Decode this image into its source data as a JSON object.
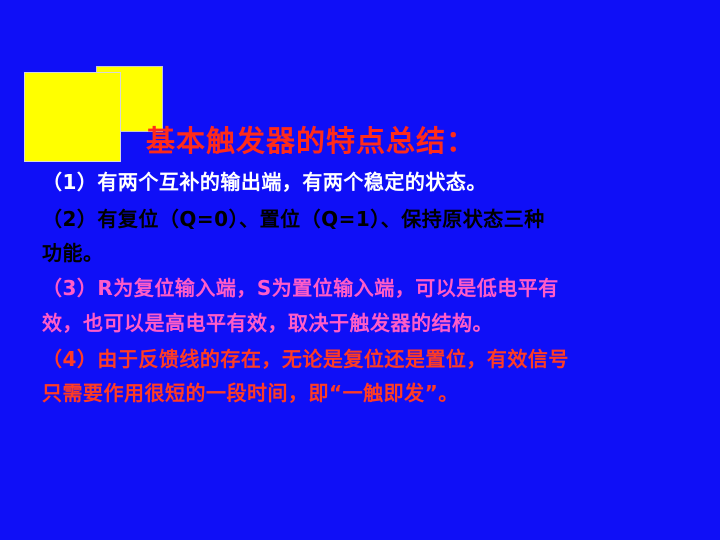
{
  "slide": {
    "title": "基本触发器的特点总结：",
    "point1": {
      "number": "（1）",
      "text": "有两个互补的输出端，有两个稳定的状态。"
    },
    "point2": {
      "number": "（2）",
      "line1": "有复位（Q=0）、置位（Q=1）、保持原状态三种",
      "line2": "功能。"
    },
    "point3": {
      "number": "（3）",
      "line1": "R为复位输入端，S为置位输入端，可以是低电平有",
      "line2": "效，也可以是高电平有效，取决于触发器的结构。"
    },
    "point4": {
      "number": "（4）",
      "line1": "由于反馈线的存在，无论是复位还是置位，有效信号",
      "line2": "只需要作用很短的一段时间，即“一触即发”。"
    }
  },
  "colors": {
    "background": "#0f0ff7",
    "title": "#ff2a1a",
    "point1": "#ffffff",
    "point2": "#000000",
    "point3": "#ff5cc8",
    "point4": "#ff3b24",
    "decor_squares": "#ffff00"
  }
}
